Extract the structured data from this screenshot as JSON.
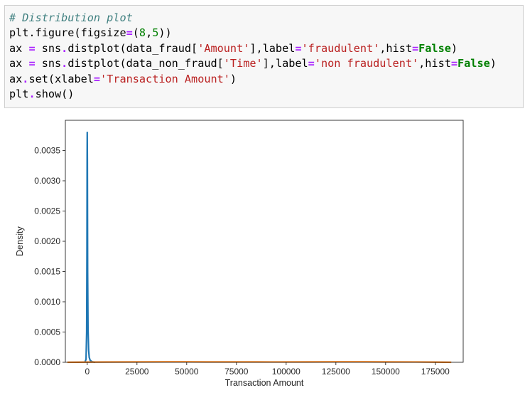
{
  "code_cell": {
    "lines": [
      [
        {
          "t": "# Distribution plot",
          "c": "tok-comment"
        }
      ],
      [
        {
          "t": "plt.figure(figsize",
          "c": ""
        },
        {
          "t": "=",
          "c": "tok-op"
        },
        {
          "t": "(",
          "c": ""
        },
        {
          "t": "8",
          "c": "tok-num"
        },
        {
          "t": ",",
          "c": ""
        },
        {
          "t": "5",
          "c": "tok-num"
        },
        {
          "t": "))",
          "c": ""
        }
      ],
      [
        {
          "t": "ax ",
          "c": ""
        },
        {
          "t": "=",
          "c": "tok-op"
        },
        {
          "t": " sns",
          "c": ""
        },
        {
          "t": ".",
          "c": "tok-op"
        },
        {
          "t": "distplot(data_fraud[",
          "c": ""
        },
        {
          "t": "'Amount'",
          "c": "tok-str"
        },
        {
          "t": "],label",
          "c": ""
        },
        {
          "t": "=",
          "c": "tok-op"
        },
        {
          "t": "'fraudulent'",
          "c": "tok-str"
        },
        {
          "t": ",hist",
          "c": ""
        },
        {
          "t": "=",
          "c": "tok-op"
        },
        {
          "t": "False",
          "c": "tok-kw"
        },
        {
          "t": ")",
          "c": ""
        }
      ],
      [
        {
          "t": "ax ",
          "c": ""
        },
        {
          "t": "=",
          "c": "tok-op"
        },
        {
          "t": " sns",
          "c": ""
        },
        {
          "t": ".",
          "c": "tok-op"
        },
        {
          "t": "distplot(data_non_fraud[",
          "c": ""
        },
        {
          "t": "'Time'",
          "c": "tok-str"
        },
        {
          "t": "],label",
          "c": ""
        },
        {
          "t": "=",
          "c": "tok-op"
        },
        {
          "t": "'non fraudulent'",
          "c": "tok-str"
        },
        {
          "t": ",hist",
          "c": ""
        },
        {
          "t": "=",
          "c": "tok-op"
        },
        {
          "t": "False",
          "c": "tok-kw"
        },
        {
          "t": ")",
          "c": ""
        }
      ],
      [
        {
          "t": "ax",
          "c": ""
        },
        {
          "t": ".",
          "c": "tok-op"
        },
        {
          "t": "set(xlabel",
          "c": ""
        },
        {
          "t": "=",
          "c": "tok-op"
        },
        {
          "t": "'Transaction Amount'",
          "c": "tok-str"
        },
        {
          "t": ")",
          "c": ""
        }
      ],
      [
        {
          "t": "plt",
          "c": ""
        },
        {
          "t": ".",
          "c": "tok-op"
        },
        {
          "t": "show()",
          "c": ""
        }
      ]
    ]
  },
  "chart_data": {
    "type": "line",
    "xlabel": "Transaction Amount",
    "ylabel": "Density",
    "xlim": [
      -11000,
      189000
    ],
    "ylim": [
      0,
      0.004
    ],
    "x_ticks": [
      0,
      25000,
      50000,
      75000,
      100000,
      125000,
      150000,
      175000
    ],
    "y_ticks": [
      0.0,
      0.0005,
      0.001,
      0.0015,
      0.002,
      0.0025,
      0.003,
      0.0035
    ],
    "x_tick_labels": [
      "0",
      "25000",
      "50000",
      "75000",
      "100000",
      "125000",
      "150000",
      "175000"
    ],
    "y_tick_labels": [
      "0.0000",
      "0.0005",
      "0.0010",
      "0.0015",
      "0.0020",
      "0.0025",
      "0.0030",
      "0.0035"
    ],
    "grid": false,
    "series": [
      {
        "color": "#1f77b4",
        "x": [
          -1200,
          -600,
          -300,
          -150,
          -50,
          0,
          80,
          200,
          400,
          700,
          1000,
          1500,
          2500,
          4000
        ],
        "y": [
          0,
          5e-05,
          0.0005,
          0.0018,
          0.0034,
          0.0038,
          0.0033,
          0.0015,
          0.00055,
          0.0002,
          8e-05,
          3e-05,
          1e-05,
          0
        ]
      },
      {
        "color": "#ff7f0e",
        "x": [
          -10000,
          -5000,
          0,
          10000,
          25000,
          40000,
          50000,
          60000,
          75000,
          85000,
          95000,
          110000,
          125000,
          140000,
          150000,
          165000,
          175000,
          183000
        ],
        "y": [
          0,
          1.5e-06,
          3e-06,
          4.5e-06,
          6e-06,
          7.5e-06,
          7e-06,
          6e-06,
          6e-06,
          5.5e-06,
          5e-06,
          6e-06,
          7.2e-06,
          7e-06,
          6.2e-06,
          5e-06,
          3e-06,
          0
        ]
      }
    ]
  }
}
